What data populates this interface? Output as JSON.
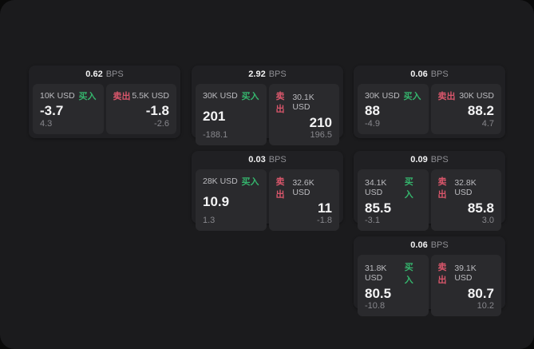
{
  "labels": {
    "bps_unit": "BPS",
    "buy": "买入",
    "sell": "卖出"
  },
  "colors": {
    "outer_bg": "#0a0a0a",
    "panel_bg": "#1b1b1d",
    "card_bg": "#202023",
    "tile_bg": "#2a2a2d",
    "buy_green": "#35b56d",
    "sell_red": "#d9566b",
    "primary_text": "#f4f4f5",
    "muted_text": "#87878c"
  },
  "cards": [
    {
      "bps": "0.62",
      "buy": {
        "amount": "10K USD",
        "price": "-3.7",
        "delta": "4.3"
      },
      "sell": {
        "amount": "5.5K USD",
        "price": "-1.8",
        "delta": "-2.6"
      }
    },
    {
      "bps": "2.92",
      "buy": {
        "amount": "30K USD",
        "price": "201",
        "delta": "-188.1"
      },
      "sell": {
        "amount": "30.1K USD",
        "price": "210",
        "delta": "196.5"
      }
    },
    {
      "bps": "0.06",
      "buy": {
        "amount": "30K USD",
        "price": "88",
        "delta": "-4.9"
      },
      "sell": {
        "amount": "30K USD",
        "price": "88.2",
        "delta": "4.7"
      }
    },
    {
      "bps": "0.03",
      "buy": {
        "amount": "28K USD",
        "price": "10.9",
        "delta": "1.3"
      },
      "sell": {
        "amount": "32.6K USD",
        "price": "11",
        "delta": "-1.8"
      }
    },
    {
      "bps": "0.09",
      "buy": {
        "amount": "34.1K USD",
        "price": "85.5",
        "delta": "-3.1"
      },
      "sell": {
        "amount": "32.8K USD",
        "price": "85.8",
        "delta": "3.0"
      }
    },
    {
      "bps": "0.06",
      "buy": {
        "amount": "31.8K USD",
        "price": "80.5",
        "delta": "-10.8"
      },
      "sell": {
        "amount": "39.1K USD",
        "price": "80.7",
        "delta": "10.2"
      }
    }
  ]
}
